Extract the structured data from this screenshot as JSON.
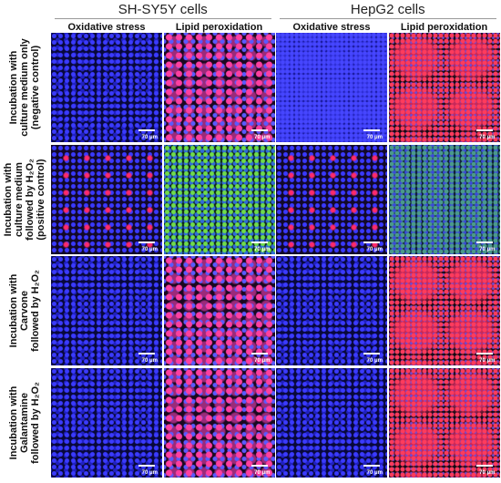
{
  "column_groups": [
    {
      "title": "SH-SY5Y cells",
      "columns": [
        "Oxidative stress",
        "Lipid peroxidation"
      ]
    },
    {
      "title": "HepG2 cells",
      "columns": [
        "Oxidative stress",
        "Lipid peroxidation"
      ]
    }
  ],
  "rows": [
    {
      "label": [
        "Incubation with",
        "culture medium only",
        "(negative control)"
      ]
    },
    {
      "label": [
        "Incubation with",
        "culture medium",
        "followed by H₂O₂",
        "(positive control)"
      ]
    },
    {
      "label": [
        "Incubation with",
        "Carvone",
        "followed by H₂O₂"
      ]
    },
    {
      "label": [
        "Incubation with",
        "Galantamine",
        "followed by H₂O₂"
      ]
    }
  ],
  "scale_bar_label": "70 μm"
}
